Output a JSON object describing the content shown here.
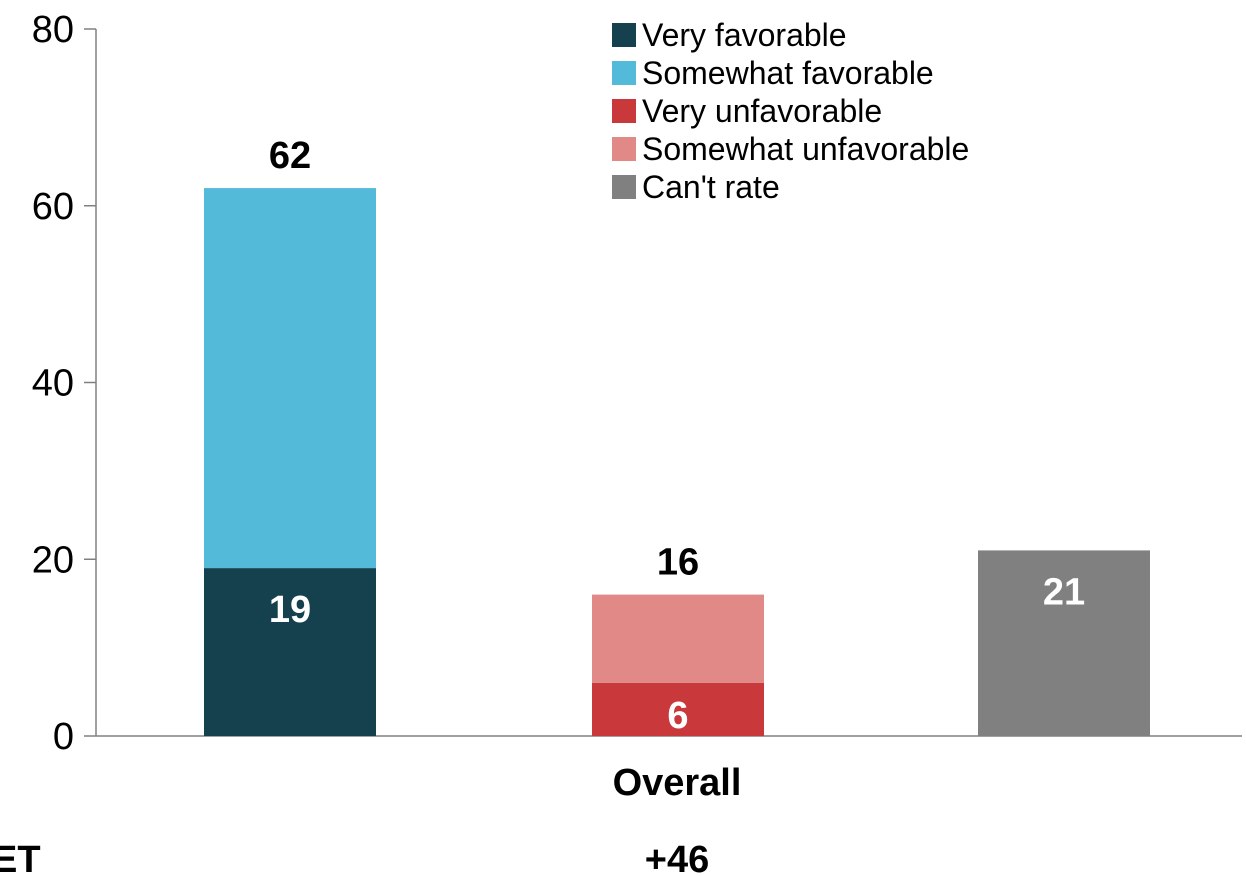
{
  "chart_data": {
    "type": "bar",
    "stacked": true,
    "ylim": [
      0,
      80
    ],
    "yticks": [
      0,
      20,
      40,
      60,
      80
    ],
    "category_label": "Overall",
    "net_label": "ET",
    "net_value": "+46",
    "legend_position": "top-right",
    "series": [
      {
        "name": "Very favorable",
        "color": "#15414f"
      },
      {
        "name": "Somewhat favorable",
        "color": "#54bada"
      },
      {
        "name": "Very unfavorable",
        "color": "#c9393b"
      },
      {
        "name": "Somewhat unfavorable",
        "color": "#e08987"
      },
      {
        "name": "Can't rate",
        "color": "#808080"
      }
    ],
    "bars": [
      {
        "segments": [
          {
            "series": "Very favorable",
            "value": 19,
            "label": "19"
          },
          {
            "series": "Somewhat favorable",
            "value": 43,
            "label": ""
          }
        ],
        "total": 62,
        "total_label": "62"
      },
      {
        "segments": [
          {
            "series": "Very unfavorable",
            "value": 6,
            "label": "6"
          },
          {
            "series": "Somewhat unfavorable",
            "value": 10,
            "label": ""
          }
        ],
        "total": 16,
        "total_label": "16"
      },
      {
        "segments": [
          {
            "series": "Can't rate",
            "value": 21,
            "label": "21"
          }
        ],
        "total": 21,
        "total_label": ""
      }
    ]
  }
}
